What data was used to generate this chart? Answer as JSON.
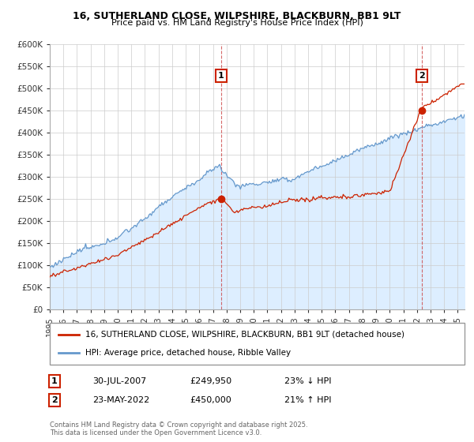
{
  "title1": "16, SUTHERLAND CLOSE, WILPSHIRE, BLACKBURN, BB1 9LT",
  "title2": "Price paid vs. HM Land Registry's House Price Index (HPI)",
  "legend_label_red": "16, SUTHERLAND CLOSE, WILPSHIRE, BLACKBURN, BB1 9LT (detached house)",
  "legend_label_blue": "HPI: Average price, detached house, Ribble Valley",
  "annotation1_label": "1",
  "annotation1_date": "30-JUL-2007",
  "annotation1_price": "£249,950",
  "annotation1_hpi": "23% ↓ HPI",
  "annotation2_label": "2",
  "annotation2_date": "23-MAY-2022",
  "annotation2_price": "£450,000",
  "annotation2_hpi": "21% ↑ HPI",
  "footer": "Contains HM Land Registry data © Crown copyright and database right 2025.\nThis data is licensed under the Open Government Licence v3.0.",
  "color_red": "#cc2200",
  "color_blue": "#6699cc",
  "color_blue_fill": "#ddeeff",
  "color_vline": "#cc2200",
  "ylim_max": 600000,
  "ylim_min": 0,
  "sale1_year": 2007.58,
  "sale1_price": 249950,
  "sale2_year": 2022.39,
  "sale2_price": 450000,
  "xmin": 1995,
  "xmax": 2025.5
}
